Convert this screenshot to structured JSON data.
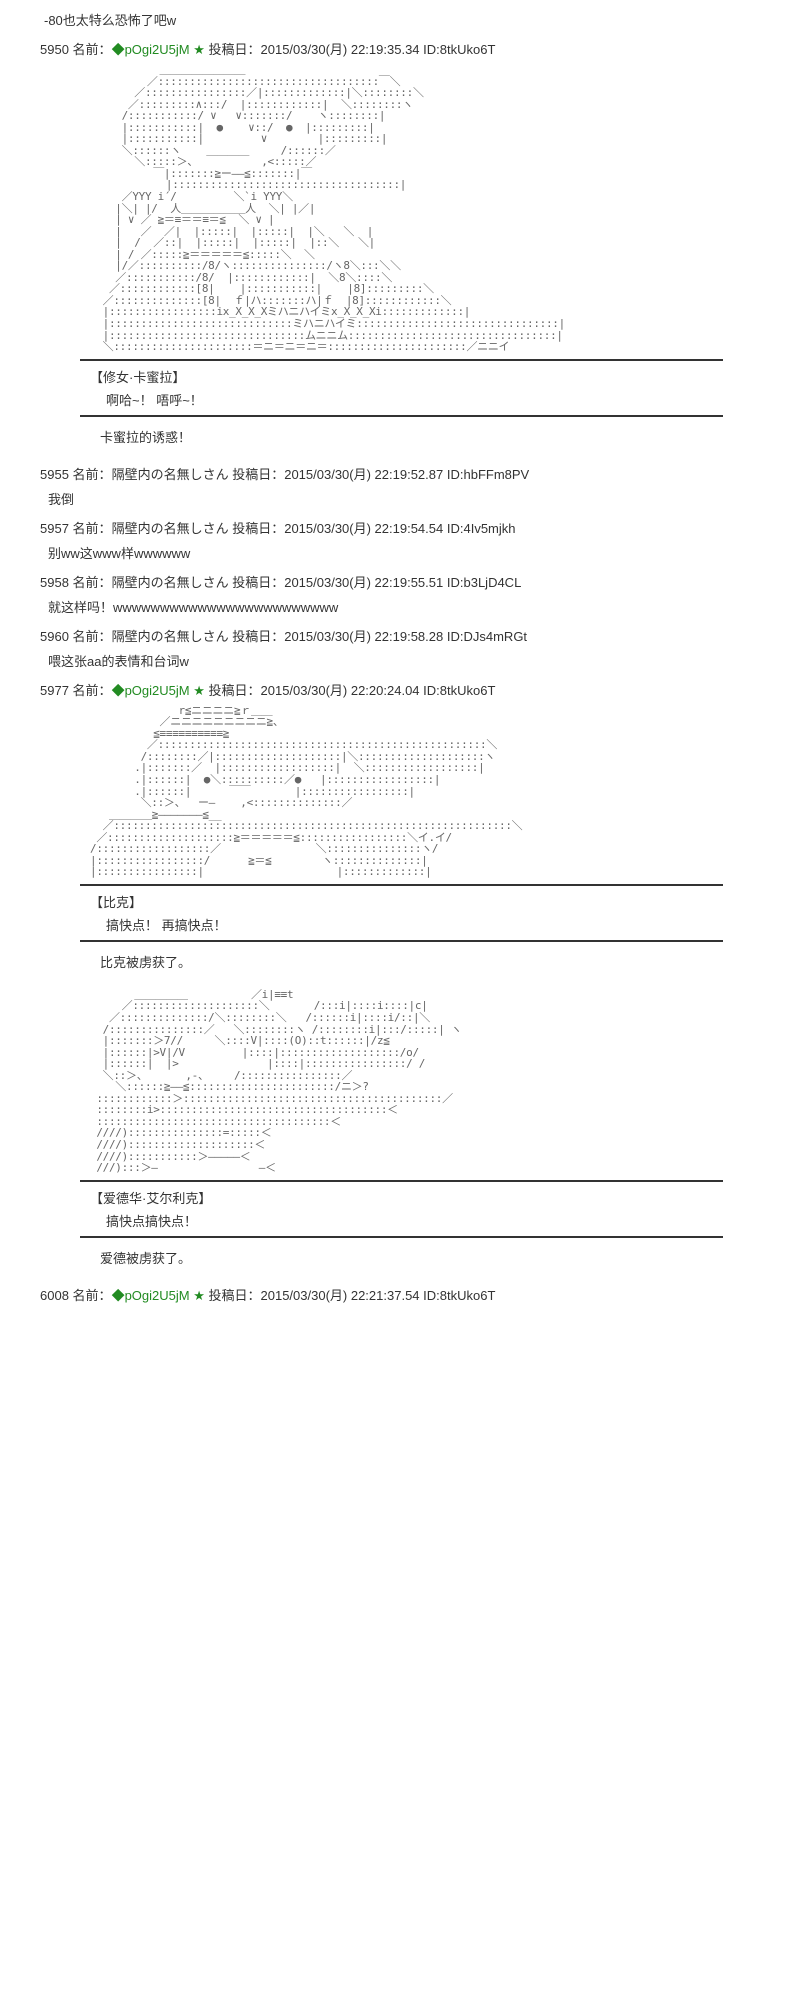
{
  "top_comment": "-80也太特么恐怖了吧w",
  "post1": {
    "num": "5950",
    "name_label": "名前：",
    "trip": "◆pOgi2U5jM",
    "star": "★",
    "date_label": "投稿日：",
    "date": "2015/03/30(月) 22:19:35.34",
    "id_label": "ID:",
    "id": "8tkUko6T"
  },
  "aa1_placeholder": "           ＿＿＿＿＿＿＿＿\n         ／:::::::::::::::::::::::::::::::::::￣＼\n       ／::::::::::::::::／|:::::::::::::|＼::::::::＼\n      ／:::::::::∧:::/  |::::::::::::|  ＼::::::::ヽ\n     /:::::::::::/ ∨   ∨:::::::/    ヽ::::::::|\n     |:::::::::::|  ●    ∨::/  ●  |:::::::::|\n     |:::::::::::|         ∨        |:::::::::|\n     ＼::::::ヽ    ＿＿＿＿     /::::::／\n       ＼:::::＞、          ,<:::::／\n          ￣|:::::::≧ー――≦:::::::|￣\n            |::::::::::::::::::::::::::::::::::::|\n     ／YYY i´/         ＼`i YYY＼\n    |＼| |/  人＿＿＿＿＿＿人  ＼| |／|\n    | ∨ ／ ≧＝≡＝＝≡＝≦  ＼ ∨ |\n    |   ／  ／|  |:::::|  |:::::|  |＼   ＼  |\n    |  /  ／::|  |:::::|  |:::::|  |::＼   ＼|\n    | / ／:::::≧＝＝＝＝＝≦:::::＼  ＼\n    |/／::::::::::/8/ヽ:::::::::::::::/ヽ8＼:::＼＼\n    ／:::::::::::/8/  |::::::::::::|  ＼8＼::::＼\n   ／::::::::::::[8|    |:::::::::::|    |8]:::::::::＼\n  ／::::::::::::::[8|  ｆ|ハ:::::::ハ|ｆ  |8]::::::::::::＼\n  |:::::::::::::::::ix_X_X_Xミハニハイミx_X_X_Xi:::::::::::::|\n  |:::::::::::::::::::::::::::::ミハニハイミ::::::::::::::::::::::::::::::::|\n  |:::::::::::::::::::::::::::::::ムニニム:::::::::::::::::::::::::::::::::|\n  ＼::::::::::::::::::::::＝ニ＝ニ＝ニ＝::::::::::::::::::::::／ニニイ",
  "dialogue1": {
    "name": "【修女·卡蜜拉】",
    "line": "啊哈~！   唔呼~！"
  },
  "narration1": "卡蜜拉的诱惑！",
  "replies": [
    {
      "num": "5955",
      "name_label": "名前：",
      "name": "隔壁内の名無しさん",
      "date_label": "投稿日：",
      "date": "2015/03/30(月) 22:19:52.87",
      "id_label": "ID:",
      "id": "hbFFm8PV",
      "text": "我倒"
    },
    {
      "num": "5957",
      "name_label": "名前：",
      "name": "隔壁内の名無しさん",
      "date_label": "投稿日：",
      "date": "2015/03/30(月) 22:19:54.54",
      "id_label": "ID:",
      "id": "4Iv5mjkh",
      "text": "别ww这www样wwwwww"
    },
    {
      "num": "5958",
      "name_label": "名前：",
      "name": "隔壁内の名無しさん",
      "date_label": "投稿日：",
      "date": "2015/03/30(月) 22:19:55.51",
      "id_label": "ID:",
      "id": "b3LjD4CL",
      "text": "就这样吗！wwwwwwwwwwwwwwwwwwwwwwww"
    },
    {
      "num": "5960",
      "name_label": "名前：",
      "name": "隔壁内の名無しさん",
      "date_label": "投稿日：",
      "date": "2015/03/30(月) 22:19:58.28",
      "id_label": "ID:",
      "id": "DJs4mRGt",
      "text": "喂这张aa的表情和台词w"
    }
  ],
  "post2": {
    "num": "5977",
    "name_label": "名前：",
    "trip": "◆pOgi2U5jM",
    "star": "★",
    "date_label": "投稿日：",
    "date": "2015/03/30(月) 22:20:24.04",
    "id_label": "ID:",
    "id": "8tkUko6T"
  },
  "aa2_placeholder": "              r≦ニニニニ≧ｒ＿＿\n           ／ニニニニニニニニニ≧、\n          ≦≡≡≡≡≡≡≡≡≡≡≧\n         ／::::::::::::::::::::::::::::::::::::::::::::::::::::＼\n        /::::::::／|::::::::::::::::::::|＼::::::::::::::::::::ヽ\n       .|:::::::／  |::::::::::::::::::|  ＼::::::::::::::::::|\n       .|::::::|  ●＼::::::::::／●   |:::::::::::::::::|\n       .|::::::|      ￣￣       |:::::::::::::::::|\n        ＼::＞、  ー―    ,<::::::::::::::／\n   ＿＿＿＿≧―――――――≦__\n  ／:::::::::::::::::::::::::::::::::::::::::::::::::::::::::::::::＼\n ／::::::::::::::::::::≧＝＝＝＝＝≦:::::::::::::::::＼イ.イ/\n/::::::::::::::::::／               ＼:::::::::::::::ヽ/\n|:::::::::::::::::/      ≧＝≦        ヽ::::::::::::::|\n|::::::::::::::::|                     |:::::::::::::|",
  "dialogue2": {
    "name": "【比克】",
    "line": "搞快点！   再搞快点！"
  },
  "narration2": "比克被虏获了。",
  "aa3_placeholder": "       ＿＿＿＿＿          ／i|≡≡t\n     ／::::::::::::::::::::＼       /:::i|::::i::::|c|\n   ／::::::::::::::/＼::::::::＼   /::::::i|::::i/::|＼\n  /:::::::::::::::／   ＼::::::::ヽ /::::::::i|:::/:::::| ヽ\n  |:::::::＞7//     ＼::::V|::::(O)::t::::::|/z≦\n  |::::::|>V|/V         |::::|:::::::::::::::::::/o/\n  |::::::|  |>              |::::|::::::::::::::::/ /\n  ＼::＞、      ,-、    /::::::::::::::::／\n    ＼::::::≧――≦:::::::::::::::::::::::/ニ＞?\n ::::::::::::＞:::::::::::::::::::::::::::::::::::::::::／\n ::::::::i>::::::::::::::::::::::::::::::::::::＜\n :::::::::::::::::::::::::::::::::::::＜\n ////):::::::::::::::=:::::＜\n ////)::::::::::::::::::::＜\n ////):::::::::::＞―――――＜\n ///):::＞―                ―＜",
  "dialogue3": {
    "name": "【爱德华·艾尔利克】",
    "line": "搞快点搞快点！"
  },
  "narration3": "爱德被虏获了。",
  "post3": {
    "num": "6008",
    "name_label": "名前：",
    "trip": "◆pOgi2U5jM",
    "star": "★",
    "date_label": "投稿日：",
    "date": "2015/03/30(月) 22:21:37.54",
    "id_label": "ID:",
    "id": "8tkUko6T"
  },
  "colors": {
    "trip_color": "#228b22",
    "text_color": "#333333",
    "border_color": "#333333"
  }
}
